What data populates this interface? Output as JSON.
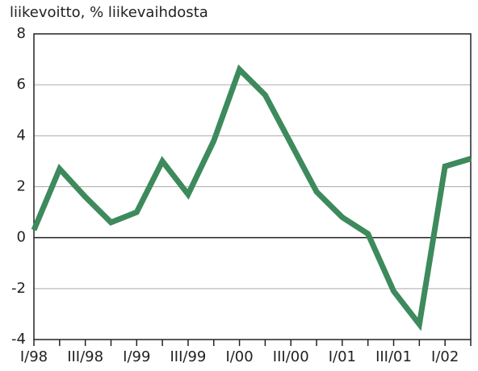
{
  "chart_data": {
    "type": "line",
    "y_label": "liikevoitto, % liikevaihdosta",
    "categories": [
      "I/98",
      null,
      "III/98",
      null,
      "I/99",
      null,
      "III/99",
      null,
      "I/00",
      null,
      "III/00",
      null,
      "I/01",
      null,
      "III/01",
      null,
      "I/02",
      null
    ],
    "series": [
      {
        "name": "liikevoitto",
        "color": "#3d8a5c",
        "values": [
          0.3,
          2.7,
          1.6,
          0.6,
          1.0,
          3.0,
          1.7,
          3.8,
          6.6,
          5.6,
          3.7,
          1.8,
          0.8,
          0.15,
          -2.1,
          -3.4,
          2.8,
          3.1
        ]
      }
    ],
    "ylim": [
      -4,
      8
    ],
    "yticks": [
      -4,
      -2,
      0,
      2,
      4,
      6,
      8
    ],
    "grid": true
  }
}
